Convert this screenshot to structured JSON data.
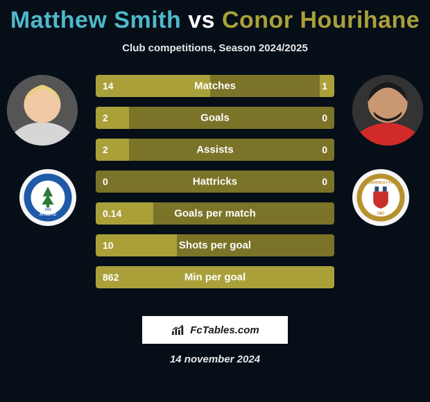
{
  "title_parts": {
    "p1": "Matthew Smith",
    "vs": " vs ",
    "p2": "Conor Hourihane"
  },
  "title_colors": {
    "p1": "#4fb8c9",
    "vs": "#ffffff",
    "p2": "#a9a03a"
  },
  "subtitle": "Club competitions, Season 2024/2025",
  "background_color": "#060e18",
  "bar_fill_color": "#a9a03a",
  "bar_mid_color": "#7b7328",
  "stats": [
    {
      "label": "Matches",
      "left_val": "14",
      "right_val": "1",
      "left_pct": 48,
      "right_pct": 6
    },
    {
      "label": "Goals",
      "left_val": "2",
      "right_val": "0",
      "left_pct": 14,
      "right_pct": 0
    },
    {
      "label": "Assists",
      "left_val": "2",
      "right_val": "0",
      "left_pct": 14,
      "right_pct": 0
    },
    {
      "label": "Hattricks",
      "left_val": "0",
      "right_val": "0",
      "left_pct": 0,
      "right_pct": 0
    },
    {
      "label": "Goals per match",
      "left_val": "0.14",
      "right_val": "",
      "left_pct": 24,
      "right_pct": 0
    },
    {
      "label": "Shots per goal",
      "left_val": "10",
      "right_val": "",
      "left_pct": 34,
      "right_pct": 0
    },
    {
      "label": "Min per goal",
      "left_val": "862",
      "right_val": "",
      "left_pct": 50,
      "right_pct": 50
    }
  ],
  "player_left": {
    "hair": "#e8d27a",
    "skin": "#f1c9a5",
    "shirt": "#d6d6d6"
  },
  "player_right": {
    "hair": "#1a1a1a",
    "skin": "#c99873",
    "shirt": "#d22929"
  },
  "club_left": {
    "name": "Wigan Athletic",
    "ring": "#1e5aa8",
    "inner": "#ffffff",
    "accent": "#2d7a3a",
    "year": "1932"
  },
  "club_right": {
    "name": "Barnsley FC",
    "ring": "#b8912f",
    "inner": "#ffffff",
    "shield": "#c9302c",
    "year": "1887"
  },
  "brand": "FcTables.com",
  "date": "14 november 2024"
}
